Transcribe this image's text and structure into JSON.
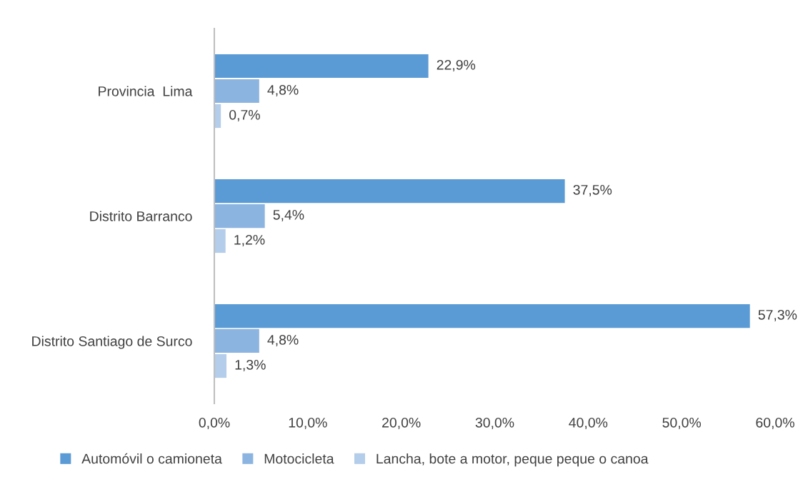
{
  "chart_data": {
    "type": "bar",
    "orientation": "horizontal",
    "categories": [
      "Provincia  Lima",
      "Distrito Barranco",
      "Distrito Santiago de Surco"
    ],
    "series": [
      {
        "name": "Automóvil o camioneta",
        "color": "#5b9bd5",
        "values": [
          22.9,
          37.5,
          57.3
        ],
        "value_labels": [
          "22,9%",
          "37,5%",
          "57,3%"
        ]
      },
      {
        "name": "Motocicleta",
        "color": "#8cb4e0",
        "values": [
          4.8,
          5.4,
          4.8
        ],
        "value_labels": [
          "4,8%",
          "5,4%",
          "4,8%"
        ]
      },
      {
        "name": "Lancha, bote a motor, peque peque o canoa",
        "color": "#b4cdea",
        "values": [
          0.7,
          1.2,
          1.3
        ],
        "value_labels": [
          "0,7%",
          "1,2%",
          "1,3%"
        ]
      }
    ],
    "xlim": [
      0,
      60
    ],
    "xticks": [
      {
        "value": 0,
        "label": "0,0%"
      },
      {
        "value": 10,
        "label": "10,0%"
      },
      {
        "value": 20,
        "label": "20,0%"
      },
      {
        "value": 30,
        "label": "30,0%"
      },
      {
        "value": 40,
        "label": "40,0%"
      },
      {
        "value": 50,
        "label": "50,0%"
      },
      {
        "value": 60,
        "label": "60,0%"
      }
    ],
    "grid": false,
    "legend": "bottom"
  }
}
